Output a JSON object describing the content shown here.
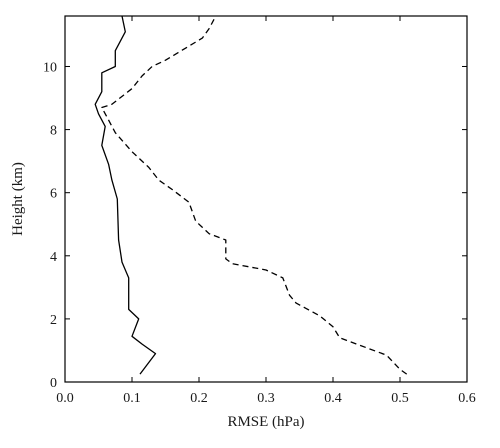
{
  "chart_data": {
    "type": "line",
    "title": "",
    "xlabel": "RMSE (hPa)",
    "ylabel": "Height (km)",
    "xlim": [
      0,
      0.6
    ],
    "ylim": [
      0,
      11.6
    ],
    "grid": false,
    "legend": "none",
    "x_ticks": [
      "0.0",
      "0.1",
      "0.2",
      "0.3",
      "0.4",
      "0.5",
      "0.6"
    ],
    "x_tick_values": [
      0,
      0.1,
      0.2,
      0.3,
      0.4,
      0.5,
      0.6
    ],
    "y_ticks": [
      "0",
      "2",
      "4",
      "6",
      "8",
      "10"
    ],
    "y_tick_values": [
      0,
      2,
      4,
      6,
      8,
      10
    ],
    "series": [
      {
        "style": "solid",
        "color": "#000000",
        "points": [
          [
            0.112,
            0.25
          ],
          [
            0.135,
            0.9
          ],
          [
            0.115,
            1.2
          ],
          [
            0.1,
            1.45
          ],
          [
            0.11,
            2.0
          ],
          [
            0.095,
            2.3
          ],
          [
            0.095,
            3.3
          ],
          [
            0.085,
            3.8
          ],
          [
            0.08,
            4.5
          ],
          [
            0.078,
            5.8
          ],
          [
            0.07,
            6.4
          ],
          [
            0.065,
            6.9
          ],
          [
            0.055,
            7.5
          ],
          [
            0.06,
            8.1
          ],
          [
            0.05,
            8.5
          ],
          [
            0.045,
            8.8
          ],
          [
            0.055,
            9.2
          ],
          [
            0.055,
            9.8
          ],
          [
            0.075,
            10.0
          ],
          [
            0.075,
            10.5
          ],
          [
            0.09,
            11.1
          ],
          [
            0.085,
            11.6
          ]
        ]
      },
      {
        "style": "dashed",
        "color": "#000000",
        "points": [
          [
            0.51,
            0.25
          ],
          [
            0.5,
            0.4
          ],
          [
            0.48,
            0.85
          ],
          [
            0.41,
            1.4
          ],
          [
            0.4,
            1.75
          ],
          [
            0.38,
            2.1
          ],
          [
            0.345,
            2.5
          ],
          [
            0.335,
            2.75
          ],
          [
            0.325,
            3.3
          ],
          [
            0.3,
            3.55
          ],
          [
            0.25,
            3.75
          ],
          [
            0.24,
            3.9
          ],
          [
            0.24,
            4.5
          ],
          [
            0.215,
            4.7
          ],
          [
            0.195,
            5.1
          ],
          [
            0.185,
            5.7
          ],
          [
            0.16,
            6.1
          ],
          [
            0.14,
            6.4
          ],
          [
            0.125,
            6.8
          ],
          [
            0.1,
            7.3
          ],
          [
            0.075,
            7.9
          ],
          [
            0.065,
            8.3
          ],
          [
            0.055,
            8.7
          ],
          [
            0.07,
            8.8
          ],
          [
            0.1,
            9.3
          ],
          [
            0.115,
            9.7
          ],
          [
            0.13,
            10.0
          ],
          [
            0.15,
            10.2
          ],
          [
            0.205,
            10.9
          ],
          [
            0.215,
            11.2
          ],
          [
            0.225,
            11.6
          ]
        ]
      }
    ]
  }
}
